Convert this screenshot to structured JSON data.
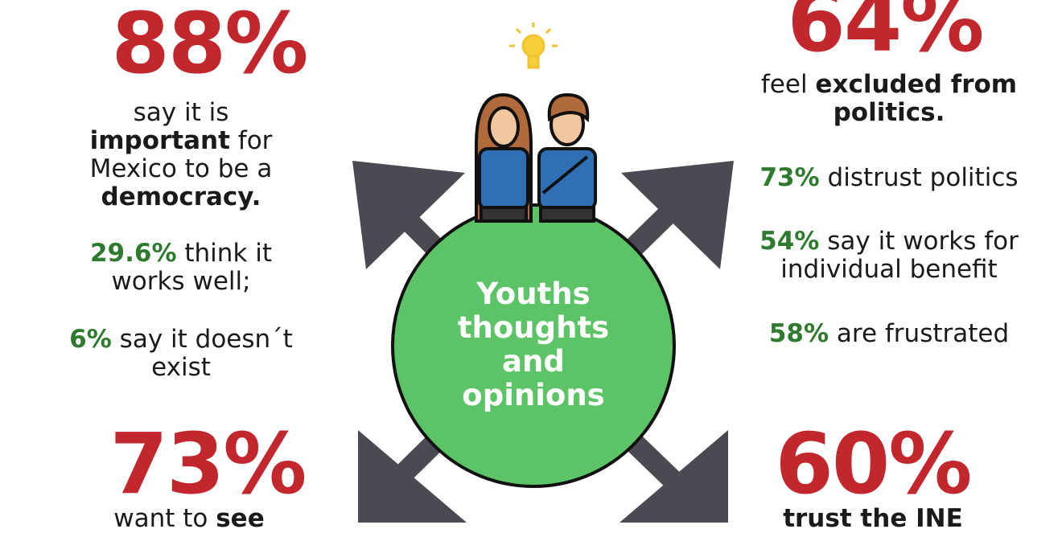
{
  "left_top": {
    "stat": "88%",
    "p1": [
      "say it is",
      "important",
      "for",
      "Mexico to be a",
      "democracy."
    ],
    "p2": [
      "29.6%",
      "think it",
      "works well;"
    ],
    "p3": [
      "6%",
      "say it doesn´t",
      "exist"
    ]
  },
  "left_bottom": {
    "stat": "73%",
    "p1": [
      "want to",
      "see"
    ]
  },
  "right_top": {
    "stat": "64%",
    "p1": [
      "feel",
      "excluded from",
      "politics."
    ],
    "p2": [
      "73%",
      "distrust politics"
    ],
    "p3": [
      "54%",
      "say it works for",
      "individual benefit"
    ],
    "p4": [
      "58%",
      "are frustrated"
    ]
  },
  "right_bottom": {
    "stat": "60%",
    "p1": [
      "trust the INE"
    ]
  },
  "center": {
    "title": [
      "Youths",
      "thoughts",
      "and",
      "opinions"
    ]
  }
}
